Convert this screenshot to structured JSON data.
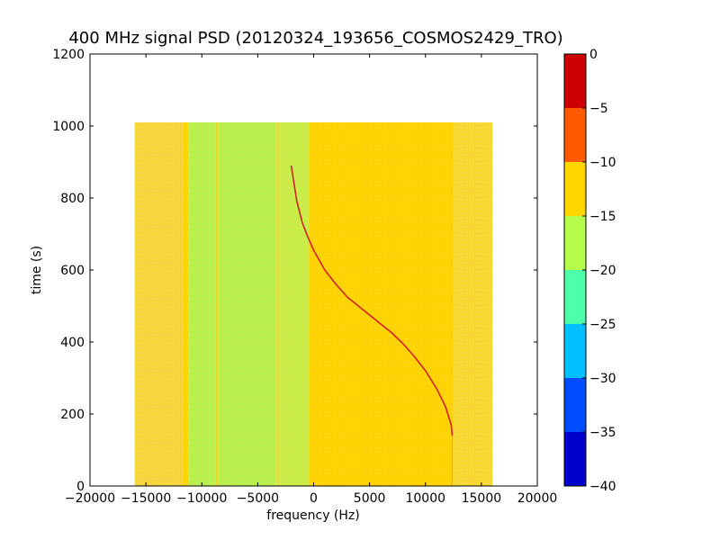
{
  "chart_data": {
    "type": "heatmap",
    "title": "400 MHz signal PSD (20120324_193656_COSMOS2429_TRO)",
    "xlabel": "frequency (Hz)",
    "ylabel": "time (s)",
    "xlim": [
      -20000,
      20000
    ],
    "ylim": [
      0,
      1200
    ],
    "x_ticks": [
      -20000,
      -15000,
      -10000,
      -5000,
      0,
      5000,
      10000,
      15000,
      20000
    ],
    "y_ticks": [
      0,
      200,
      400,
      600,
      800,
      1000,
      1200
    ],
    "grid": false,
    "data_extent": {
      "x": [
        -16000,
        16000
      ],
      "y": [
        0,
        1010
      ]
    },
    "colorbar": {
      "range": [
        -40,
        0
      ],
      "ticks": [
        0,
        -5,
        -10,
        -15,
        -20,
        -25,
        -30,
        -35,
        -40
      ],
      "levels": [
        {
          "from": -40,
          "to": -35,
          "color": "#0000cc"
        },
        {
          "from": -35,
          "to": -30,
          "color": "#004cff"
        },
        {
          "from": -30,
          "to": -25,
          "color": "#00c0ff"
        },
        {
          "from": -25,
          "to": -20,
          "color": "#4dffaa"
        },
        {
          "from": -20,
          "to": -15,
          "color": "#b4ff4a"
        },
        {
          "from": -15,
          "to": -10,
          "color": "#ffd700"
        },
        {
          "from": -10,
          "to": -5,
          "color": "#ff5a00"
        },
        {
          "from": -5,
          "to": 0,
          "color": "#cc0000"
        }
      ]
    },
    "background_bands": [
      {
        "x": [
          -16000,
          -11700
        ],
        "color": "#f5d43c"
      },
      {
        "x": [
          -11700,
          -11200
        ],
        "color": "#ffd200"
      },
      {
        "x": [
          -11200,
          -8800
        ],
        "color": "#b8f050"
      },
      {
        "x": [
          -8800,
          -8500
        ],
        "color": "#e6dc30"
      },
      {
        "x": [
          -8500,
          -3400
        ],
        "color": "#b8f050"
      },
      {
        "x": [
          -3400,
          -3000
        ],
        "color": "#dce040"
      },
      {
        "x": [
          -3000,
          -400
        ],
        "color": "#c8ec48"
      },
      {
        "x": [
          -400,
          0
        ],
        "color": "#ffd200"
      },
      {
        "x": [
          0,
          12500
        ],
        "color": "#ffd200"
      },
      {
        "x": [
          12500,
          16000
        ],
        "color": "#f7d632"
      }
    ],
    "signal_trace": {
      "x": [
        -2000,
        -1800,
        -1500,
        -1000,
        -500,
        0,
        1000,
        2000,
        3000,
        4000,
        5000,
        6000,
        7000,
        8000,
        9000,
        10000,
        11000,
        11800,
        12300,
        12400
      ],
      "y": [
        890,
        850,
        790,
        730,
        690,
        655,
        600,
        560,
        525,
        500,
        475,
        450,
        425,
        395,
        360,
        320,
        270,
        220,
        170,
        140
      ]
    }
  }
}
